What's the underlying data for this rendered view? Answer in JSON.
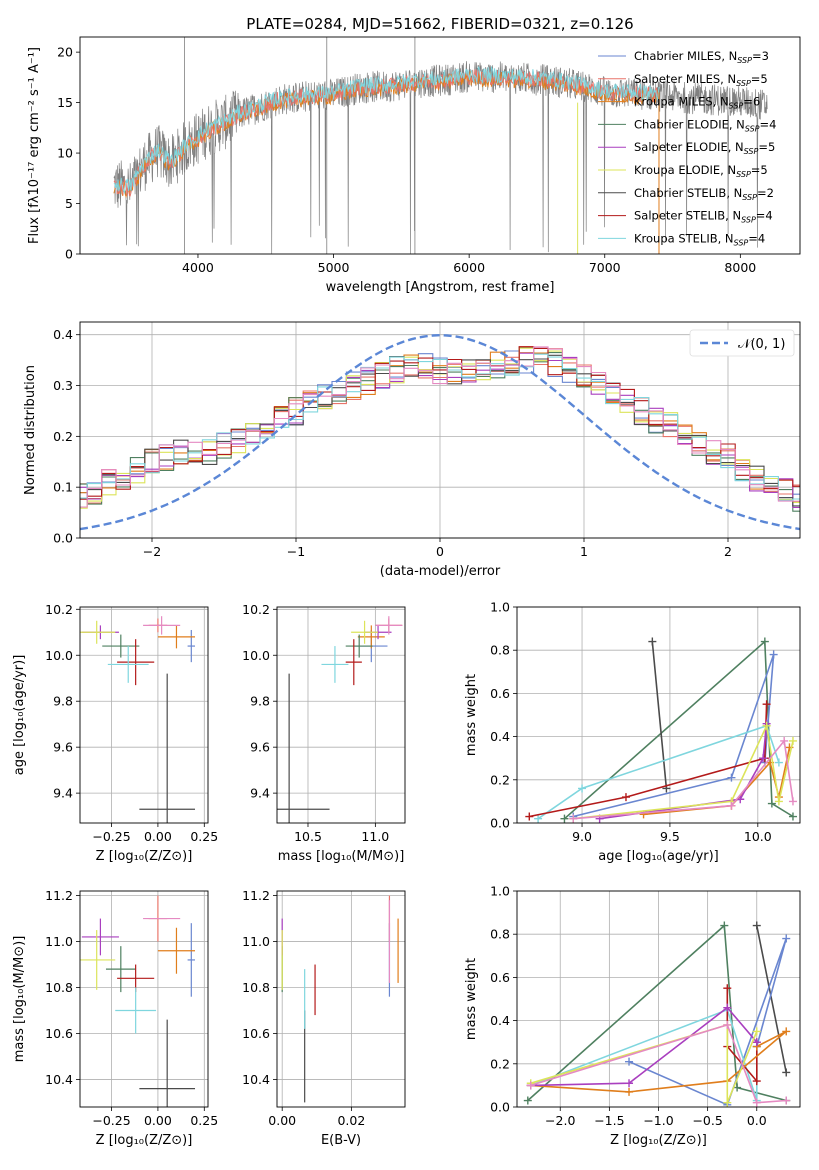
{
  "colors": {
    "Chabrier MILES": "#6a86d0",
    "Salpeter MILES": "#e8746a",
    "Kroupa MILES": "#e07e1c",
    "Chabrier ELODIE": "#4f8060",
    "Salpeter ELODIE": "#a93fbf",
    "Kroupa ELODIE": "#dce45a",
    "Chabrier STELIB": "#4b4b4b",
    "Salpeter STELIB": "#b31a1a",
    "Kroupa STELIB": "#7fd6de",
    "pink": "#e58ac2",
    "gaussian": "#5b87d6",
    "flux_gray": "#808080"
  },
  "chart_data": [
    {
      "id": "spectrum",
      "type": "line",
      "title": "PLATE=0284, MJD=51662, FIBERID=0321, z=0.126",
      "xlabel": "wavelength [Angstrom, rest frame]",
      "ylabel": "Flux [fλ10⁻¹⁷ erg cm⁻² s⁻¹ A⁻¹]",
      "xlim": [
        3130,
        8440
      ],
      "ylim": [
        0,
        21.5
      ],
      "xticks": [
        "4000",
        "5000",
        "6000",
        "7000",
        "8000"
      ],
      "yticks": [
        "0",
        "5",
        "10",
        "15",
        "20"
      ],
      "data_continuum": {
        "x": [
          3380,
          3500,
          3600,
          3700,
          3800,
          3900,
          4000,
          4100,
          4200,
          4300,
          4400,
          4600,
          4800,
          5000,
          5200,
          5400,
          5600,
          5800,
          6000,
          6200,
          6400,
          6600,
          6800,
          7000,
          7200,
          7400,
          7600,
          7800,
          8000,
          8200
        ],
        "y": [
          6.8,
          6.5,
          8.8,
          10.2,
          9.0,
          10.5,
          11.5,
          12.5,
          13.0,
          13.8,
          14.3,
          15.3,
          15.6,
          15.8,
          16.5,
          16.6,
          17.0,
          17.2,
          17.6,
          17.5,
          17.4,
          17.2,
          16.7,
          16.0,
          15.9,
          15.7,
          15.5,
          15.3,
          15.1,
          14.7
        ]
      },
      "model_range": [
        3380,
        7400
      ],
      "legend": [
        {
          "label": "Chabrier MILES, N",
          "sub": "SSP",
          "tail": "=3"
        },
        {
          "label": "Salpeter MILES, N",
          "sub": "SSP",
          "tail": "=5"
        },
        {
          "label": "Kroupa MILES, N",
          "sub": "SSP",
          "tail": "=6"
        },
        {
          "label": "Chabrier ELODIE, N",
          "sub": "SSP",
          "tail": "=4"
        },
        {
          "label": "Salpeter ELODIE, N",
          "sub": "SSP",
          "tail": "=5"
        },
        {
          "label": "Kroupa ELODIE, N",
          "sub": "SSP",
          "tail": "=5"
        },
        {
          "label": "Chabrier STELIB, N",
          "sub": "SSP",
          "tail": "=2"
        },
        {
          "label": "Salpeter STELIB, N",
          "sub": "SSP",
          "tail": "=4"
        },
        {
          "label": "Kroupa STELIB, N",
          "sub": "SSP",
          "tail": "=4"
        }
      ],
      "legend_keys": [
        "Chabrier MILES",
        "Salpeter MILES",
        "Kroupa MILES",
        "Chabrier ELODIE",
        "Salpeter ELODIE",
        "Kroupa ELODIE",
        "Chabrier STELIB",
        "Salpeter STELIB",
        "Kroupa STELIB"
      ]
    },
    {
      "id": "residuals",
      "type": "histogram",
      "xlabel": "(data-model)/error",
      "ylabel": "Normed distribution",
      "xlim": [
        -2.5,
        2.5
      ],
      "ylim": [
        0,
        0.425
      ],
      "xticks": [
        "−2",
        "−1",
        "0",
        "1",
        "2"
      ],
      "yticks": [
        "0.0",
        "0.1",
        "0.2",
        "0.3",
        "0.4"
      ],
      "legend": "𝒩(0, 1)",
      "gaussian": {
        "mean": 0,
        "sigma": 1
      },
      "bin_width": 0.1,
      "base": [
        0.045,
        0.05,
        0.055,
        0.06,
        0.07,
        0.08,
        0.09,
        0.11,
        0.12,
        0.135,
        0.15,
        0.16,
        0.17,
        0.165,
        0.17,
        0.18,
        0.19,
        0.2,
        0.22,
        0.24,
        0.25,
        0.27,
        0.28,
        0.29,
        0.3,
        0.31,
        0.32,
        0.33,
        0.34,
        0.34,
        0.33,
        0.33,
        0.33,
        0.33,
        0.34,
        0.345,
        0.35,
        0.35,
        0.345,
        0.33,
        0.32,
        0.3,
        0.28,
        0.27,
        0.25,
        0.23,
        0.22,
        0.2,
        0.19,
        0.17,
        0.16,
        0.14,
        0.12,
        0.1,
        0.09,
        0.08,
        0.07,
        0.065,
        0.06,
        0.055,
        0.05
      ]
    },
    {
      "id": "age-vs-Z",
      "type": "errorbar",
      "xlabel": "Z [log₁₀(Z/Z⊙)]",
      "ylabel": "age  [log₁₀(age/yr)]",
      "xlim": [
        -0.42,
        0.27
      ],
      "ylim": [
        9.27,
        10.21
      ],
      "xticks": [
        "−0.25",
        "0.00",
        "0.25"
      ],
      "yticks": [
        "9.4",
        "9.6",
        "9.8",
        "10.0",
        "10.2"
      ],
      "points": [
        {
          "k": "Chabrier MILES",
          "x": 0.18,
          "y": 10.04,
          "ex": 0.02,
          "ey": 0.07
        },
        {
          "k": "Salpeter MILES",
          "x": 0.0,
          "y": 10.13,
          "ex": 0.05,
          "ey": 0.03
        },
        {
          "k": "Kroupa MILES",
          "x": 0.1,
          "y": 10.08,
          "ex": 0.1,
          "ey": 0.05
        },
        {
          "k": "Chabrier ELODIE",
          "x": -0.2,
          "y": 10.04,
          "ex": 0.1,
          "ey": 0.05
        },
        {
          "k": "Salpeter ELODIE",
          "x": -0.31,
          "y": 10.1,
          "ex": 0.1,
          "ey": 0.03
        },
        {
          "k": "Kroupa ELODIE",
          "x": -0.33,
          "y": 10.1,
          "ex": 0.1,
          "ey": 0.05
        },
        {
          "k": "Chabrier STELIB",
          "x": 0.05,
          "y": 9.33,
          "ex": 0.15,
          "ey": 0.59
        },
        {
          "k": "Salpeter STELIB",
          "x": -0.12,
          "y": 9.97,
          "ex": 0.1,
          "ey": 0.1
        },
        {
          "k": "Kroupa STELIB",
          "x": -0.16,
          "y": 9.96,
          "ex": 0.11,
          "ey": 0.08
        },
        {
          "k": "pink",
          "x": 0.02,
          "y": 10.13,
          "ex": 0.1,
          "ey": 0.04
        }
      ]
    },
    {
      "id": "age-vs-mass",
      "type": "errorbar",
      "xlabel": "mass [log₁₀(M/M⊙)]",
      "ylabel": "",
      "xlim": [
        10.27,
        11.22
      ],
      "ylim": [
        9.27,
        10.21
      ],
      "xticks": [
        "10.5",
        "11.0"
      ],
      "yticks": [
        "9.4",
        "9.6",
        "9.8",
        "10.0",
        "10.2"
      ],
      "points": [
        {
          "k": "Chabrier MILES",
          "x": 10.97,
          "y": 10.04,
          "ex": 0.12,
          "ey": 0.07
        },
        {
          "k": "Salpeter MILES",
          "x": 11.1,
          "y": 10.13,
          "ex": 0.1,
          "ey": 0.03
        },
        {
          "k": "Kroupa MILES",
          "x": 10.97,
          "y": 10.08,
          "ex": 0.1,
          "ey": 0.05
        },
        {
          "k": "Chabrier ELODIE",
          "x": 10.88,
          "y": 10.04,
          "ex": 0.1,
          "ey": 0.05
        },
        {
          "k": "Salpeter ELODIE",
          "x": 11.02,
          "y": 10.1,
          "ex": 0.1,
          "ey": 0.03
        },
        {
          "k": "Kroupa ELODIE",
          "x": 10.92,
          "y": 10.1,
          "ex": 0.1,
          "ey": 0.05
        },
        {
          "k": "Chabrier STELIB",
          "x": 10.36,
          "y": 9.33,
          "ex": 0.3,
          "ey": 0.59
        },
        {
          "k": "Salpeter STELIB",
          "x": 10.84,
          "y": 9.97,
          "ex": 0.06,
          "ey": 0.1
        },
        {
          "k": "Kroupa STELIB",
          "x": 10.7,
          "y": 9.96,
          "ex": 0.1,
          "ey": 0.08
        },
        {
          "k": "pink",
          "x": 11.1,
          "y": 10.13,
          "ex": 0.1,
          "ey": 0.04
        }
      ]
    },
    {
      "id": "weight-vs-age",
      "type": "line",
      "xlabel": "age  [log₁₀(age/yr)]",
      "ylabel": "mass weight",
      "xlim": [
        8.63,
        10.24
      ],
      "ylim": [
        0,
        1.0
      ],
      "xticks": [
        "9.0",
        "9.5",
        "10.0"
      ],
      "yticks": [
        "0.0",
        "0.2",
        "0.4",
        "0.6",
        "0.8",
        "1.0"
      ],
      "series": [
        {
          "k": "Chabrier ELODIE",
          "x": [
            8.9,
            10.04,
            10.08,
            10.2
          ],
          "y": [
            0.02,
            0.84,
            0.09,
            0.03
          ]
        },
        {
          "k": "Chabrier STELIB",
          "x": [
            9.4,
            9.48
          ],
          "y": [
            0.84,
            0.16
          ]
        },
        {
          "k": "Chabrier MILES",
          "x": [
            8.95,
            9.85,
            10.09,
            10.04
          ],
          "y": [
            0.03,
            0.21,
            0.78,
            0.28
          ]
        },
        {
          "k": "Kroupa STELIB",
          "x": [
            8.75,
            9.0,
            10.05,
            10.12
          ],
          "y": [
            0.02,
            0.16,
            0.45,
            0.28
          ]
        },
        {
          "k": "Salpeter STELIB",
          "x": [
            8.7,
            9.25,
            10.04,
            10.05
          ],
          "y": [
            0.03,
            0.12,
            0.3,
            0.55
          ]
        },
        {
          "k": "Kroupa MILES",
          "x": [
            9.35,
            9.85,
            10.07,
            10.12,
            10.18
          ],
          "y": [
            0.04,
            0.08,
            0.28,
            0.12,
            0.35
          ]
        },
        {
          "k": "Salpeter ELODIE",
          "x": [
            9.1,
            9.9,
            10.03,
            10.05
          ],
          "y": [
            0.02,
            0.11,
            0.3,
            0.46
          ]
        },
        {
          "k": "Kroupa ELODIE",
          "x": [
            8.95,
            9.85,
            10.05,
            10.12,
            10.2
          ],
          "y": [
            0.02,
            0.1,
            0.45,
            0.1,
            0.38
          ]
        },
        {
          "k": "pink",
          "x": [
            8.95,
            9.85,
            10.15,
            10.2
          ],
          "y": [
            0.02,
            0.08,
            0.38,
            0.1
          ]
        }
      ]
    },
    {
      "id": "mass-vs-Z",
      "type": "errorbar",
      "xlabel": "Z [log₁₀(Z/Z⊙)]",
      "ylabel": "mass [log₁₀(M/M⊙)]",
      "xlim": [
        -0.42,
        0.27
      ],
      "ylim": [
        10.28,
        11.22
      ],
      "xticks": [
        "−0.25",
        "0.00",
        "0.25"
      ],
      "yticks": [
        "10.4",
        "10.6",
        "10.8",
        "11.0",
        "11.2"
      ],
      "points": [
        {
          "k": "Chabrier MILES",
          "x": 0.18,
          "y": 10.92,
          "ex": 0.02,
          "ey": 0.16
        },
        {
          "k": "Salpeter MILES",
          "x": 0.0,
          "y": 11.1,
          "ex": 0.05,
          "ey": 0.1
        },
        {
          "k": "Kroupa MILES",
          "x": 0.1,
          "y": 10.96,
          "ex": 0.1,
          "ey": 0.1
        },
        {
          "k": "Chabrier ELODIE",
          "x": -0.2,
          "y": 10.88,
          "ex": 0.08,
          "ey": 0.1
        },
        {
          "k": "Salpeter ELODIE",
          "x": -0.31,
          "y": 11.02,
          "ex": 0.1,
          "ey": 0.08
        },
        {
          "k": "Kroupa ELODIE",
          "x": -0.33,
          "y": 10.92,
          "ex": 0.1,
          "ey": 0.13
        },
        {
          "k": "Chabrier STELIB",
          "x": 0.05,
          "y": 10.36,
          "ex": 0.15,
          "ey": 0.3
        },
        {
          "k": "Salpeter STELIB",
          "x": -0.12,
          "y": 10.84,
          "ex": 0.1,
          "ey": 0.06
        },
        {
          "k": "Kroupa STELIB",
          "x": -0.12,
          "y": 10.7,
          "ex": 0.11,
          "ey": 0.1
        },
        {
          "k": "pink",
          "x": 0.02,
          "y": 11.1,
          "ex": 0.1,
          "ey": 0.0
        }
      ]
    },
    {
      "id": "mass-vs-ebv",
      "type": "errorbar",
      "xlabel": "E(B-V)",
      "ylabel": "",
      "xlim": [
        -0.0015,
        0.0355
      ],
      "ylim": [
        10.28,
        11.22
      ],
      "xticks": [
        "0.00",
        "0.02"
      ],
      "yticks": [
        "10.4",
        "10.6",
        "10.8",
        "11.0",
        "11.2"
      ],
      "points": [
        {
          "k": "Chabrier MILES",
          "x": 0.031,
          "y": 10.92,
          "ex": 0,
          "ey": 0.16
        },
        {
          "k": "Salpeter MILES",
          "x": 0.031,
          "y": 11.1,
          "ex": 0,
          "ey": 0.1
        },
        {
          "k": "Kroupa MILES",
          "x": 0.0335,
          "y": 10.96,
          "ex": 0,
          "ey": 0.14
        },
        {
          "k": "Chabrier ELODIE",
          "x": 0.0,
          "y": 10.88,
          "ex": 0,
          "ey": 0.1
        },
        {
          "k": "Salpeter ELODIE",
          "x": 0.0,
          "y": 11.02,
          "ex": 0,
          "ey": 0.08
        },
        {
          "k": "Kroupa ELODIE",
          "x": 0.0,
          "y": 10.92,
          "ex": 0,
          "ey": 0.13
        },
        {
          "k": "Chabrier STELIB",
          "x": 0.0065,
          "y": 10.5,
          "ex": 0,
          "ey": 0.2
        },
        {
          "k": "Salpeter STELIB",
          "x": 0.0095,
          "y": 10.79,
          "ex": 0,
          "ey": 0.11
        },
        {
          "k": "Kroupa STELIB",
          "x": 0.0065,
          "y": 10.75,
          "ex": 0,
          "ey": 0.13
        },
        {
          "k": "pink",
          "x": 0.031,
          "y": 11.0,
          "ex": 0,
          "ey": 0.18
        }
      ]
    },
    {
      "id": "weight-vs-Z",
      "type": "line",
      "xlabel": "Z [log₁₀(Z/Z⊙)]",
      "ylabel": "mass weight",
      "xlim": [
        -2.44,
        0.44
      ],
      "ylim": [
        0,
        1.0
      ],
      "xticks": [
        "−2.0",
        "−1.5",
        "−1.0",
        "−0.5",
        "0.0"
      ],
      "yticks": [
        "0.0",
        "0.2",
        "0.4",
        "0.6",
        "0.8",
        "1.0"
      ],
      "series": [
        {
          "k": "Chabrier ELODIE",
          "x": [
            -2.33,
            -0.33,
            -0.2,
            0.3
          ],
          "y": [
            0.03,
            0.84,
            0.09,
            0.03
          ]
        },
        {
          "k": "Chabrier STELIB",
          "x": [
            0.0,
            0.3
          ],
          "y": [
            0.84,
            0.16
          ]
        },
        {
          "k": "Chabrier MILES",
          "x": [
            -1.3,
            -0.3,
            0.3,
            0.0
          ],
          "y": [
            0.21,
            0.01,
            0.78,
            0.28
          ]
        },
        {
          "k": "Kroupa STELIB",
          "x": [
            -2.3,
            -0.3,
            0.0,
            0.0
          ],
          "y": [
            0.1,
            0.45,
            0.03,
            0.28
          ]
        },
        {
          "k": "Salpeter STELIB",
          "x": [
            -0.3,
            -0.3,
            0.0,
            0.0
          ],
          "y": [
            0.55,
            0.28,
            0.12,
            0.3
          ]
        },
        {
          "k": "Kroupa MILES",
          "x": [
            -2.3,
            -1.3,
            -0.3,
            0.3,
            0.0
          ],
          "y": [
            0.1,
            0.07,
            0.12,
            0.35,
            0.28
          ]
        },
        {
          "k": "Salpeter ELODIE",
          "x": [
            -2.3,
            -1.3,
            -0.3,
            0.0
          ],
          "y": [
            0.1,
            0.11,
            0.46,
            0.3
          ]
        },
        {
          "k": "Kroupa ELODIE",
          "x": [
            -2.3,
            -0.3,
            -0.3,
            0.0
          ],
          "y": [
            0.11,
            0.38,
            0.02,
            0.35
          ]
        },
        {
          "k": "pink",
          "x": [
            -2.3,
            -0.3,
            0.0,
            0.3
          ],
          "y": [
            0.1,
            0.38,
            0.02,
            0.03
          ]
        }
      ]
    }
  ]
}
